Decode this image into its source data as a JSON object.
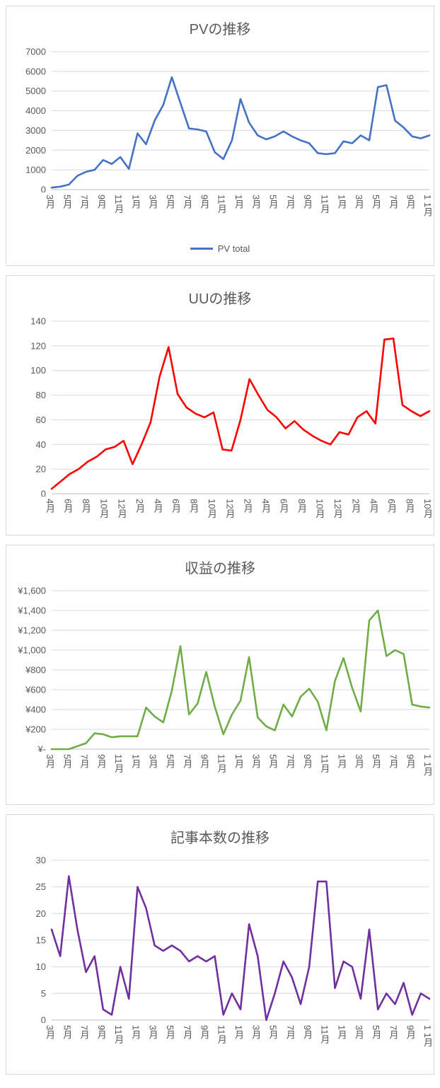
{
  "chart_data": [
    {
      "type": "line",
      "title": "PVの推移",
      "legend": "PV total",
      "color": "#4472C4",
      "y_min": 0,
      "y_max": 7000,
      "y_ticks": [
        "0",
        "1000",
        "2000",
        "3000",
        "4000",
        "5000",
        "6000",
        "7000"
      ],
      "grid": true,
      "legend_position": "bottom",
      "x_labels": [
        "3月",
        "",
        "5月",
        "",
        "7月",
        "",
        "9月",
        "",
        "11月",
        "",
        "1月",
        "",
        "3月",
        "",
        "5月",
        "",
        "7月",
        "",
        "9月",
        "",
        "11月",
        "",
        "1月",
        "",
        "3月",
        "",
        "5月",
        "",
        "7月",
        "",
        "9月",
        "",
        "11月",
        "",
        "1月",
        "",
        "3月",
        "",
        "5月",
        "",
        "7月",
        "",
        "9月",
        "",
        "1 1月"
      ],
      "values": [
        100,
        150,
        250,
        700,
        900,
        1000,
        1500,
        1300,
        1650,
        1050,
        2850,
        2300,
        3500,
        4300,
        5700,
        4400,
        3100,
        3050,
        2950,
        1900,
        1550,
        2500,
        4600,
        3400,
        2750,
        2550,
        2700,
        2950,
        2700,
        2500,
        2350,
        1850,
        1800,
        1850,
        2450,
        2350,
        2750,
        2500,
        5200,
        5300,
        3500,
        3150,
        2700,
        2600,
        2750
      ]
    },
    {
      "type": "line",
      "title": "UUの推移",
      "legend": "",
      "color": "#FF0000",
      "y_min": 0,
      "y_max": 140,
      "y_ticks": [
        "0",
        "20",
        "40",
        "60",
        "80",
        "100",
        "120",
        "140"
      ],
      "grid": true,
      "legend_position": "none",
      "x_labels": [
        "4月",
        "",
        "6月",
        "",
        "8月",
        "",
        "10月",
        "",
        "12月",
        "",
        "2月",
        "",
        "4月",
        "",
        "6月",
        "",
        "8月",
        "",
        "10月",
        "",
        "12月",
        "",
        "2月",
        "",
        "4月",
        "",
        "6月",
        "",
        "8月",
        "",
        "10月",
        "",
        "12月",
        "",
        "2月",
        "",
        "4月",
        "",
        "6月",
        "",
        "8月",
        "",
        "10月"
      ],
      "values": [
        4,
        10,
        16,
        20,
        26,
        30,
        36,
        38,
        43,
        24,
        40,
        58,
        95,
        119,
        81,
        70,
        65,
        62,
        66,
        36,
        35,
        60,
        93,
        80,
        68,
        62,
        53,
        59,
        52,
        47,
        43,
        40,
        50,
        48,
        62,
        67,
        57,
        125,
        126,
        72,
        67,
        63,
        67
      ]
    },
    {
      "type": "line",
      "title": "収益の推移",
      "legend": "",
      "color": "#70AD47",
      "y_min": 0,
      "y_max": 1600,
      "y_ticks": [
        "¥-",
        "¥200",
        "¥400",
        "¥600",
        "¥800",
        "¥1,000",
        "¥1,200",
        "¥1,400",
        "¥1,600"
      ],
      "grid": true,
      "legend_position": "none",
      "x_labels": [
        "3月",
        "",
        "5月",
        "",
        "7月",
        "",
        "9月",
        "",
        "11月",
        "",
        "1月",
        "",
        "3月",
        "",
        "5月",
        "",
        "7月",
        "",
        "9月",
        "",
        "11月",
        "",
        "1月",
        "",
        "3月",
        "",
        "5月",
        "",
        "7月",
        "",
        "9月",
        "",
        "11月",
        "",
        "1月",
        "",
        "3月",
        "",
        "5月",
        "",
        "7月",
        "",
        "9月",
        "",
        "1 1月"
      ],
      "values": [
        0,
        0,
        0,
        30,
        60,
        160,
        150,
        120,
        130,
        130,
        130,
        420,
        330,
        270,
        590,
        1040,
        350,
        460,
        780,
        430,
        150,
        350,
        490,
        930,
        320,
        230,
        190,
        450,
        330,
        530,
        610,
        480,
        190,
        690,
        920,
        620,
        380,
        1300,
        1400,
        940,
        1000,
        960,
        450,
        430,
        420
      ]
    },
    {
      "type": "line",
      "title": "記事本数の推移",
      "legend": "",
      "color": "#7030A0",
      "y_min": 0,
      "y_max": 30,
      "y_ticks": [
        "0",
        "5",
        "10",
        "15",
        "20",
        "25",
        "30"
      ],
      "grid": true,
      "legend_position": "none",
      "x_labels": [
        "3月",
        "",
        "5月",
        "",
        "7月",
        "",
        "9月",
        "",
        "11月",
        "",
        "1月",
        "",
        "3月",
        "",
        "5月",
        "",
        "7月",
        "",
        "9月",
        "",
        "11月",
        "",
        "1月",
        "",
        "3月",
        "",
        "5月",
        "",
        "7月",
        "",
        "9月",
        "",
        "11月",
        "",
        "1月",
        "",
        "3月",
        "",
        "5月",
        "",
        "7月",
        "",
        "9月",
        "",
        "1 1月"
      ],
      "values": [
        17,
        12,
        27,
        17,
        9,
        12,
        2,
        1,
        10,
        4,
        25,
        21,
        14,
        13,
        14,
        13,
        11,
        12,
        11,
        12,
        1,
        5,
        2,
        18,
        12,
        0,
        5,
        11,
        8,
        3,
        10,
        26,
        26,
        6,
        11,
        10,
        4,
        17,
        2,
        5,
        3,
        7,
        1,
        5,
        4
      ]
    }
  ]
}
